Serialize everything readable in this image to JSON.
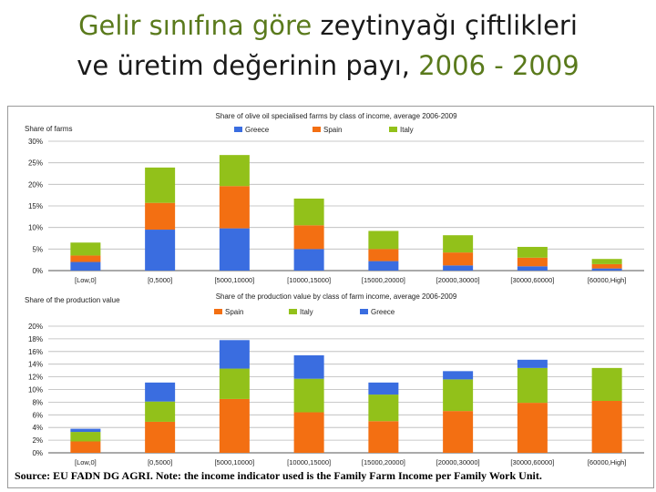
{
  "slide": {
    "title_line1_a": "Gelir sınıfına göre",
    "title_line1_b": " zeytinyağı çiftlikleri",
    "title_line2_a": "ve üretim değerinin payı, ",
    "title_line2_b": "2006 - 2009",
    "accent_color": "#5a7a1c",
    "source": "Source: EU FADN DG AGRI. Note: the income indicator used is the Family Farm Income per Family Work Unit."
  },
  "chart_data": [
    {
      "type": "bar",
      "stacked": true,
      "title": "Share of olive oil specialised farms by class of income, average 2006-2009",
      "ylabel": "Share of farms",
      "xlabel": "",
      "categories": [
        "[Low,0]",
        "[0,5000]",
        "[5000,10000]",
        "[10000,15000]",
        "[15000,20000]",
        "[20000,30000]",
        "[30000,60000]",
        "[60000,High]"
      ],
      "ylim": [
        0,
        30
      ],
      "yticks": [
        0,
        5,
        10,
        15,
        20,
        25,
        30
      ],
      "ytick_labels": [
        "0%",
        "5%",
        "10%",
        "15%",
        "20%",
        "25%",
        "30%"
      ],
      "legend_position": "top",
      "grid": true,
      "series": [
        {
          "name": "Greece",
          "color": "#3a6de0",
          "values": [
            2.0,
            9.5,
            9.8,
            5.0,
            2.2,
            1.2,
            1.0,
            0.5
          ]
        },
        {
          "name": "Spain",
          "color": "#f36f12",
          "values": [
            1.5,
            6.2,
            9.8,
            5.5,
            2.8,
            3.0,
            2.0,
            1.0
          ]
        },
        {
          "name": "Italy",
          "color": "#92c11a",
          "values": [
            3.0,
            8.2,
            7.2,
            6.2,
            4.2,
            4.0,
            2.5,
            1.2
          ]
        }
      ]
    },
    {
      "type": "bar",
      "stacked": true,
      "title": "Share of the production value by class of farm income, average 2006-2009",
      "ylabel": "Share of the production value",
      "xlabel": "",
      "categories": [
        "[Low,0]",
        "[0,5000]",
        "[5000,10000]",
        "[10000,15000]",
        "[15000,20000]",
        "[20000,30000]",
        "[30000,60000]",
        "[60000,High]"
      ],
      "ylim": [
        0,
        20
      ],
      "yticks": [
        0,
        2,
        4,
        6,
        8,
        10,
        12,
        14,
        16,
        18,
        20
      ],
      "ytick_labels": [
        "0%",
        "2%",
        "4%",
        "6%",
        "8%",
        "10%",
        "12%",
        "14%",
        "16%",
        "18%",
        "20%"
      ],
      "legend_position": "top",
      "grid": true,
      "series": [
        {
          "name": "Spain",
          "color": "#f36f12",
          "values": [
            1.8,
            4.9,
            8.5,
            6.4,
            5.0,
            6.6,
            7.9,
            8.2
          ]
        },
        {
          "name": "Italy",
          "color": "#92c11a",
          "values": [
            1.5,
            3.2,
            4.8,
            5.3,
            4.2,
            5.0,
            5.5,
            5.2
          ]
        },
        {
          "name": "Greece",
          "color": "#3a6de0",
          "values": [
            0.5,
            3.0,
            4.5,
            3.7,
            1.9,
            1.3,
            1.3,
            0
          ]
        }
      ]
    }
  ]
}
